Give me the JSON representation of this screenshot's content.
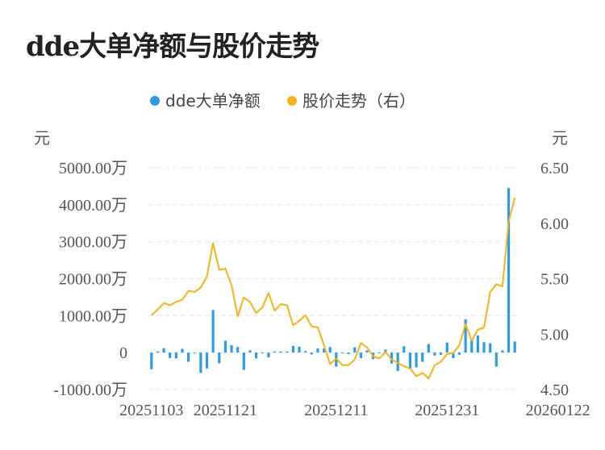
{
  "title": "dde大单净额与股价走势",
  "legend": [
    {
      "label": "dde大单净额",
      "color": "#2e9be6"
    },
    {
      "label": "股价走势（右）",
      "color": "#f4b41a"
    }
  ],
  "left_unit": "元",
  "right_unit": "元",
  "chart_data": {
    "type": "bar+line",
    "left_axis": {
      "ticks": [
        "5000.00万",
        "4000.00万",
        "3000.00万",
        "2000.00万",
        "1000.00万",
        "0",
        "-1000.00万"
      ],
      "ylim": [
        -1000,
        5000
      ]
    },
    "right_axis": {
      "ticks": [
        "6.50",
        "6.00",
        "5.50",
        "5.00",
        "4.50"
      ],
      "ylim": [
        4.5,
        6.5
      ]
    },
    "x_tick_labels": [
      "20251103",
      "20251121",
      "20251211",
      "20251231",
      "20260122"
    ],
    "x_tick_index": [
      0,
      12,
      30,
      48,
      66
    ],
    "series": [
      {
        "name": "dde大单净额",
        "type": "bar",
        "color": "#2e9be6",
        "values": [
          -450,
          30,
          120,
          -150,
          -160,
          100,
          -250,
          0,
          -550,
          -430,
          1150,
          -290,
          320,
          200,
          150,
          -470,
          60,
          -160,
          0,
          -130,
          30,
          30,
          30,
          180,
          160,
          40,
          -50,
          110,
          110,
          150,
          -380,
          -20,
          -40,
          140,
          -150,
          60,
          -180,
          -20,
          80,
          -300,
          -500,
          170,
          -450,
          -400,
          -250,
          230,
          -80,
          -60,
          270,
          -150,
          -60,
          900,
          350,
          460,
          280,
          250,
          -380,
          60,
          4450,
          300
        ]
      },
      {
        "name": "股价走势（右）",
        "type": "line",
        "color": "#f4b41a",
        "values": [
          5.17,
          5.22,
          5.28,
          5.26,
          5.29,
          5.31,
          5.39,
          5.38,
          5.42,
          5.52,
          5.82,
          5.58,
          5.59,
          5.44,
          5.16,
          5.33,
          5.29,
          5.19,
          5.24,
          5.37,
          5.21,
          5.27,
          5.26,
          5.08,
          5.12,
          5.17,
          5.07,
          5.06,
          4.9,
          4.73,
          4.78,
          4.72,
          4.72,
          4.77,
          4.92,
          4.88,
          4.8,
          4.78,
          4.84,
          4.77,
          4.74,
          4.71,
          4.69,
          4.62,
          4.65,
          4.6,
          4.72,
          4.75,
          4.82,
          4.83,
          4.9,
          5.09,
          4.94,
          5.04,
          5.06,
          5.38,
          5.45,
          5.43,
          6.01,
          6.23
        ]
      }
    ]
  }
}
